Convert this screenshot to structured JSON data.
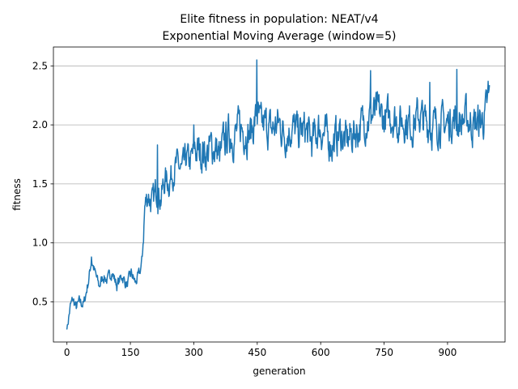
{
  "chart_data": {
    "type": "line",
    "title": "Elite fitness in population: NEAT/v4",
    "subtitle": "Exponential Moving Average (window=5)",
    "xlabel": "generation",
    "ylabel": "fitness",
    "xlim": [
      -32,
      1036
    ],
    "ylim": [
      0.16,
      2.66
    ],
    "xticks": [
      0,
      150,
      300,
      450,
      600,
      750,
      900
    ],
    "yticks": [
      0.5,
      1.0,
      1.5,
      2.0,
      2.5
    ],
    "ytick_labels": [
      "0.5",
      "1.0",
      "1.5",
      "2.0",
      "2.5"
    ],
    "grid": "y",
    "legend": "none",
    "color": "#1f77b4",
    "anchors": [
      [
        0,
        0.27
      ],
      [
        8,
        0.46
      ],
      [
        14,
        0.52
      ],
      [
        22,
        0.45
      ],
      [
        30,
        0.5
      ],
      [
        40,
        0.48
      ],
      [
        52,
        0.7
      ],
      [
        58,
        0.86
      ],
      [
        66,
        0.75
      ],
      [
        76,
        0.63
      ],
      [
        86,
        0.72
      ],
      [
        96,
        0.68
      ],
      [
        106,
        0.76
      ],
      [
        118,
        0.64
      ],
      [
        130,
        0.72
      ],
      [
        142,
        0.64
      ],
      [
        152,
        0.74
      ],
      [
        162,
        0.66
      ],
      [
        172,
        0.74
      ],
      [
        178,
        0.86
      ],
      [
        184,
        1.3
      ],
      [
        192,
        1.42
      ],
      [
        202,
        1.32
      ],
      [
        212,
        1.46
      ],
      [
        222,
        1.38
      ],
      [
        232,
        1.54
      ],
      [
        242,
        1.52
      ],
      [
        252,
        1.62
      ],
      [
        262,
        1.66
      ],
      [
        272,
        1.6
      ],
      [
        282,
        1.72
      ],
      [
        292,
        1.68
      ],
      [
        302,
        1.8
      ],
      [
        312,
        1.76
      ],
      [
        322,
        1.78
      ],
      [
        332,
        1.75
      ],
      [
        342,
        1.82
      ],
      [
        352,
        1.8
      ],
      [
        362,
        1.72
      ],
      [
        372,
        1.86
      ],
      [
        384,
        1.92
      ],
      [
        396,
        1.9
      ],
      [
        408,
        1.98
      ],
      [
        420,
        1.95
      ],
      [
        432,
        1.92
      ],
      [
        442,
        2.0
      ],
      [
        450,
        2.1
      ],
      [
        458,
        1.98
      ],
      [
        470,
        2.0
      ],
      [
        484,
        1.95
      ],
      [
        500,
        2.02
      ],
      [
        516,
        1.92
      ],
      [
        532,
        1.98
      ],
      [
        548,
        1.93
      ],
      [
        564,
        1.96
      ],
      [
        580,
        1.85
      ],
      [
        596,
        1.98
      ],
      [
        612,
        1.9
      ],
      [
        628,
        1.84
      ],
      [
        644,
        1.93
      ],
      [
        660,
        1.86
      ],
      [
        676,
        1.92
      ],
      [
        692,
        1.98
      ],
      [
        708,
        2.05
      ],
      [
        722,
        2.08
      ],
      [
        738,
        2.1
      ],
      [
        752,
        2.04
      ],
      [
        768,
        2.08
      ],
      [
        784,
        2.02
      ],
      [
        800,
        2.04
      ],
      [
        816,
        2.0
      ],
      [
        832,
        2.08
      ],
      [
        848,
        2.02
      ],
      [
        864,
        1.98
      ],
      [
        880,
        2.02
      ],
      [
        896,
        2.0
      ],
      [
        912,
        2.05
      ],
      [
        928,
        2.02
      ],
      [
        944,
        2.06
      ],
      [
        960,
        2.0
      ],
      [
        976,
        2.02
      ],
      [
        988,
        2.06
      ],
      [
        999,
        2.24
      ]
    ],
    "peaks": [
      [
        449,
        2.55
      ],
      [
        922,
        2.47
      ],
      [
        718,
        2.46
      ],
      [
        996,
        2.37
      ],
      [
        858,
        2.36
      ],
      [
        58,
        0.88
      ],
      [
        214,
        1.83
      ],
      [
        300,
        2.0
      ]
    ]
  }
}
